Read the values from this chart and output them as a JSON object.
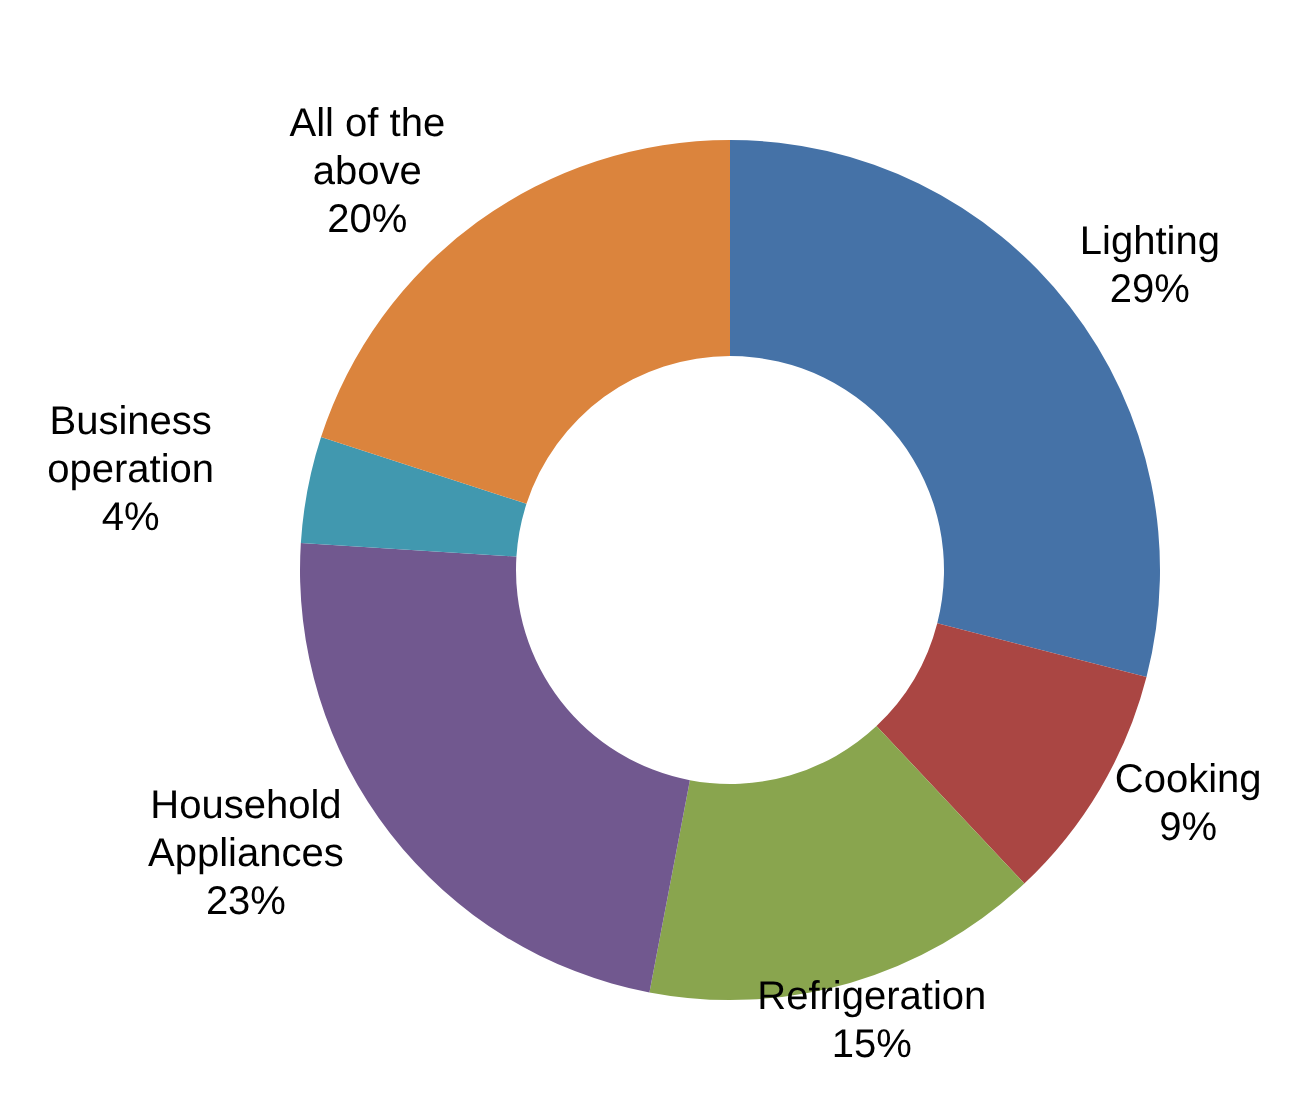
{
  "chart_data": {
    "type": "donut",
    "categories": [
      "Lighting",
      "Cooking",
      "Refrigeration",
      "Household Appliances",
      "Business operation",
      "All of the above"
    ],
    "values": [
      29,
      9,
      15,
      23,
      4,
      20
    ],
    "colors": [
      "#4572a7",
      "#aa4643",
      "#89a54e",
      "#71588f",
      "#4198af",
      "#db843d"
    ],
    "value_labels": [
      "29%",
      "9%",
      "15%",
      "23%",
      "4%",
      "20%"
    ],
    "legend": false
  }
}
